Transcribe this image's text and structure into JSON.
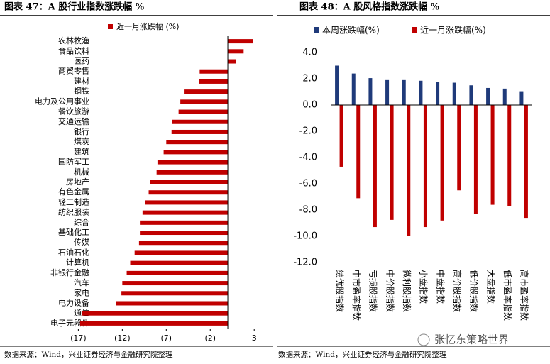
{
  "chart_data": [
    {
      "type": "hbar",
      "title": "图表 47：A 股行业指数涨跌幅 %",
      "categories": [
        "农林牧渔",
        "食品饮料",
        "医药",
        "商贸零售",
        "建材",
        "钢铁",
        "电力及公用事业",
        "餐饮旅游",
        "交通运输",
        "银行",
        "煤炭",
        "建筑",
        "国防军工",
        "机械",
        "房地产",
        "有色金属",
        "轻工制造",
        "纺织服装",
        "综合",
        "基础化工",
        "传媒",
        "石油石化",
        "计算机",
        "非银行金融",
        "汽车",
        "家电",
        "电力设备",
        "通信",
        "电子元器件"
      ],
      "series": [
        {
          "name": "近一月涨跌幅 (%)",
          "color": "#c00000",
          "values": [
            2.9,
            1.8,
            0.9,
            -3.2,
            -3.3,
            -5.0,
            -5.4,
            -5.6,
            -6.3,
            -6.4,
            -7.0,
            -7.3,
            -8.0,
            -8.1,
            -8.8,
            -9.0,
            -9.4,
            -9.7,
            -10.0,
            -10.0,
            -10.1,
            -10.6,
            -11.1,
            -11.5,
            -12.0,
            -12.1,
            -12.7,
            -16.6,
            -16.8
          ]
        }
      ],
      "xlim": [
        -18,
        4
      ],
      "xticks": [
        {
          "value": -17,
          "label": "(17)"
        },
        {
          "value": -12,
          "label": "(12)"
        },
        {
          "value": -7,
          "label": "(7)"
        },
        {
          "value": -2,
          "label": "(2)"
        },
        3
      ],
      "source": "数据来源：Wind，兴业证券经济与金融研究院整理"
    },
    {
      "type": "bar",
      "title": "图表 48：A 股风格指数涨跌幅 %",
      "categories": [
        "绩优股指数",
        "中市盈率指数",
        "亏损股指数",
        "中价股指数",
        "微利股指数",
        "小盘指数",
        "中盘指数",
        "高价股指数",
        "低价股指数",
        "大盘指数",
        "低市盈率指数",
        "高市盈率指数"
      ],
      "series": [
        {
          "name": "本周涨跌幅(%)",
          "color": "#1f3a7a",
          "values": [
            3.0,
            2.4,
            2.05,
            1.9,
            1.9,
            1.85,
            1.75,
            1.7,
            1.5,
            1.3,
            1.25,
            1.05
          ]
        },
        {
          "name": "近一月涨跌幅(%)",
          "color": "#c00000",
          "values": [
            -4.7,
            -7.1,
            -9.3,
            -8.75,
            -10.0,
            -9.3,
            -8.8,
            -6.5,
            -8.3,
            -7.6,
            -7.7,
            -8.6
          ]
        }
      ],
      "ylim": [
        -12,
        4
      ],
      "yticks": [
        {
          "value": 4,
          "label": "4.0"
        },
        {
          "value": 2,
          "label": "2.0"
        },
        {
          "value": 0,
          "label": "0.0"
        },
        {
          "value": -2,
          "label": "-2.0"
        },
        {
          "value": -4,
          "label": "-4.0"
        },
        {
          "value": -6,
          "label": "-6.0"
        },
        {
          "value": -8,
          "label": "-8.0"
        },
        {
          "value": -10,
          "label": "-10.0"
        },
        {
          "value": -12,
          "label": "-12.0"
        }
      ],
      "source": "数据来源：Wind，兴业证券经济与金融研究院整理"
    }
  ],
  "watermark": "张忆东策略世界"
}
